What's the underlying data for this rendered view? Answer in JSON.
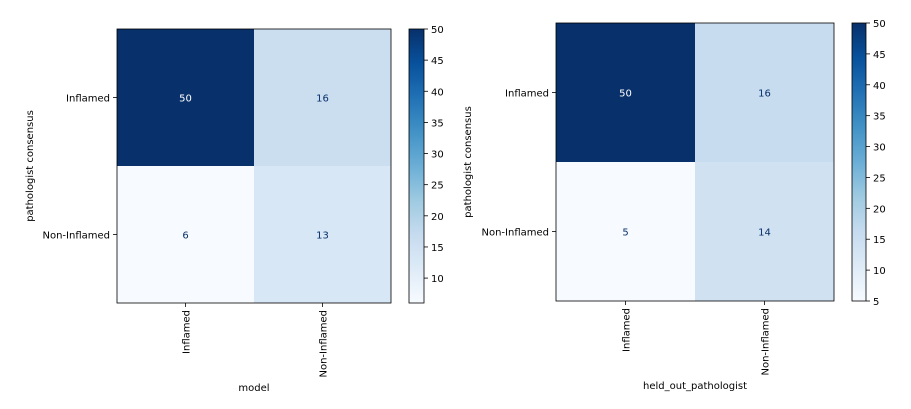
{
  "chart_data": [
    {
      "type": "heatmap",
      "title": "",
      "xlabel": "model",
      "ylabel": "pathologist consensus",
      "x_categories": [
        "Inflamed",
        "Non-Inflamed"
      ],
      "y_categories": [
        "Inflamed",
        "Non-Inflamed"
      ],
      "values": [
        [
          50,
          16
        ],
        [
          6,
          13
        ]
      ],
      "colormap": "Blues",
      "color_range": [
        6,
        50
      ],
      "colorbar_ticks": [
        10,
        15,
        20,
        25,
        30,
        35,
        40,
        45,
        50
      ],
      "grid": false,
      "legend": "colorbar-right"
    },
    {
      "type": "heatmap",
      "title": "",
      "xlabel": "held_out_pathologist",
      "ylabel": "pathologist consensus",
      "x_categories": [
        "Inflamed",
        "Non-Inflamed"
      ],
      "y_categories": [
        "Inflamed",
        "Non-Inflamed"
      ],
      "values": [
        [
          50,
          16
        ],
        [
          5,
          14
        ]
      ],
      "colormap": "Blues",
      "color_range": [
        5,
        50
      ],
      "colorbar_ticks": [
        5,
        10,
        15,
        20,
        25,
        30,
        35,
        40,
        45,
        50
      ],
      "grid": false,
      "legend": "colorbar-right"
    }
  ]
}
